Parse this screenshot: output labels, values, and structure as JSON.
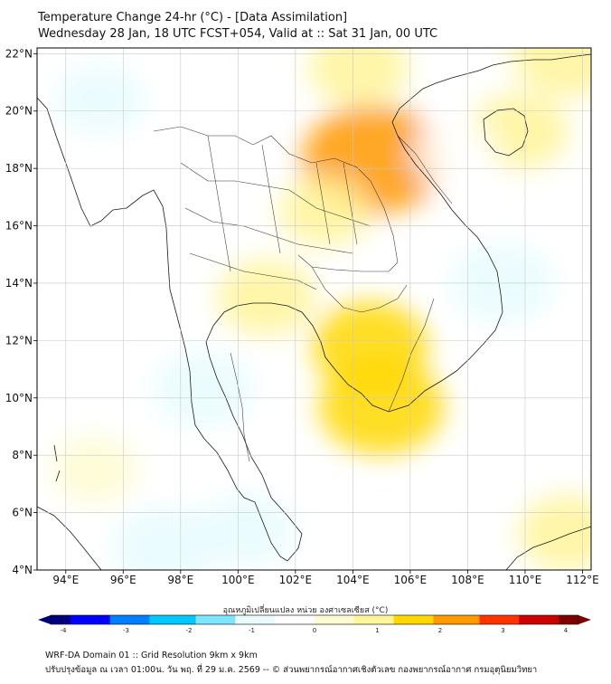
{
  "title": "Temperature Change 24-hr (°C) - [Data Assimilation]",
  "subtitle": "Wednesday 28 Jan, 18 UTC FCST+054, Valid at :: Sat 31 Jan, 00 UTC",
  "lon_labels": [
    "94°E",
    "96°E",
    "98°E",
    "100°E",
    "102°E",
    "104°E",
    "106°E",
    "108°E",
    "110°E",
    "112°E"
  ],
  "lon_values": [
    94,
    96,
    98,
    100,
    102,
    104,
    106,
    108,
    110,
    112
  ],
  "lat_labels": [
    "22°N",
    "20°N",
    "18°N",
    "16°N",
    "14°N",
    "12°N",
    "10°N",
    "8°N",
    "6°N",
    "4°N"
  ],
  "lat_values": [
    22,
    20,
    18,
    16,
    14,
    12,
    10,
    8,
    6,
    4
  ],
  "extent": {
    "lon_min": 93,
    "lon_max": 112.3,
    "lat_min": 4,
    "lat_max": 22.2
  },
  "colorbar": {
    "label": "อุณหภูมิเปลี่ยนแปลง หน่วย องศาเซลเซียส (°C)",
    "ticks": [
      "-4",
      "-3",
      "-2",
      "-1",
      "0",
      "1",
      "2",
      "3",
      "4"
    ],
    "min": -4,
    "max": 4,
    "colors": [
      "#00007f",
      "#0000ff",
      "#0080ff",
      "#00c8ff",
      "#7fe6ff",
      "#e8fbff",
      "#ffffff",
      "#fffbd0",
      "#fff59a",
      "#ffd800",
      "#ff9900",
      "#ff3300",
      "#cc0000",
      "#7f0000"
    ]
  },
  "footer_line1": "WRF-DA Domain 01 :: Grid Resolution 9km x 9km",
  "footer_line2": "ปรับปรุงข้อมูล ณ เวลา 01:00น. วัน พฤ. ที่ 29 ม.ค. 2569 -- © ส่วนพยากรณ์อากาศเชิงตัวเลข กองพยากรณ์อากาศ กรมอุตุนิยมวิทยา",
  "field_features": [
    {
      "name": "warm-core-north-laos",
      "lon": 104.7,
      "lat": 18.3,
      "value": 1.9
    },
    {
      "name": "warm-mekong-delta",
      "lon": 105.0,
      "lat": 9.7,
      "value": 1.5
    },
    {
      "name": "warm-cambodia",
      "lon": 104.6,
      "lat": 11.8,
      "value": 1.3
    },
    {
      "name": "warm-central-thailand",
      "lon": 101.0,
      "lat": 13.5,
      "value": 0.9
    },
    {
      "name": "warm-northeast-thailand",
      "lon": 103.0,
      "lat": 16.5,
      "value": 0.7
    },
    {
      "name": "warm-hainan",
      "lon": 109.8,
      "lat": 19.3,
      "value": 0.9
    },
    {
      "name": "warm-top-right",
      "lon": 111.5,
      "lat": 22.0,
      "value": 1.2
    },
    {
      "name": "warm-top-center",
      "lon": 104.2,
      "lat": 21.5,
      "value": 0.9
    },
    {
      "name": "warm-southeast",
      "lon": 111.5,
      "lat": 5.3,
      "value": 0.9
    },
    {
      "name": "warm-sw-sea",
      "lon": 95.0,
      "lat": 7.5,
      "value": 0.6
    },
    {
      "name": "cool-vietnam-coast",
      "lon": 109.2,
      "lat": 14.0,
      "value": -1.0
    },
    {
      "name": "cool-andaman-south",
      "lon": 97.5,
      "lat": 4.8,
      "value": -1.1
    },
    {
      "name": "cool-peninsula",
      "lon": 98.8,
      "lat": 10.3,
      "value": -0.9
    },
    {
      "name": "cool-myanmar-west",
      "lon": 95.2,
      "lat": 20.4,
      "value": -0.7
    },
    {
      "name": "cool-sumatra-strait",
      "lon": 100.3,
      "lat": 5.4,
      "value": -0.8
    },
    {
      "name": "cool-gulf-of-tonkin",
      "lon": 107.6,
      "lat": 18.5,
      "value": -0.6
    }
  ]
}
